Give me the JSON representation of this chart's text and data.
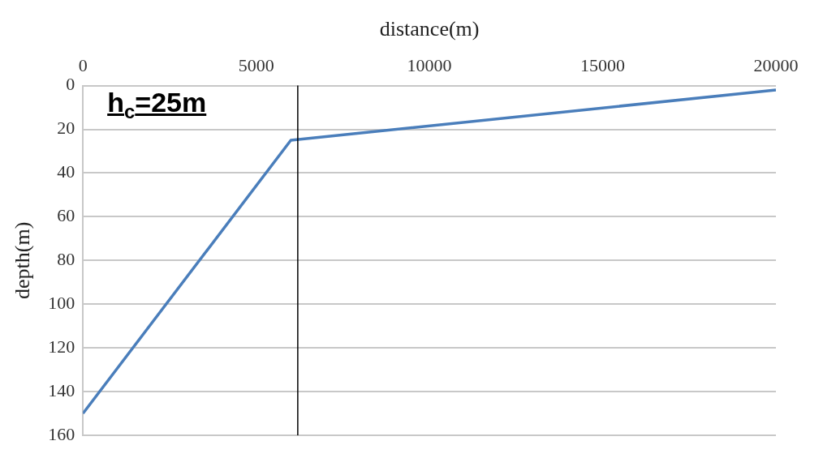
{
  "chart_data": {
    "type": "line",
    "xlabel": "distance(m)",
    "ylabel": "depth(m)",
    "x": [
      0,
      6000,
      20000
    ],
    "series": [
      {
        "color": "#4a7ebb",
        "values": [
          150,
          25,
          2
        ]
      }
    ],
    "xlim": [
      0,
      20000
    ],
    "xticks": [
      0,
      5000,
      10000,
      15000,
      20000
    ],
    "ylim": [
      160,
      0
    ],
    "yticks": [
      0,
      20,
      40,
      60,
      80,
      100,
      120,
      140,
      160
    ],
    "grid": "y",
    "legend": false,
    "marker": "none",
    "line_style": "solid",
    "ref_lines": [
      {
        "axis": "x",
        "value": 6200,
        "color": "#000000"
      }
    ],
    "annotations": [
      "h$_{c}$=25m"
    ]
  }
}
